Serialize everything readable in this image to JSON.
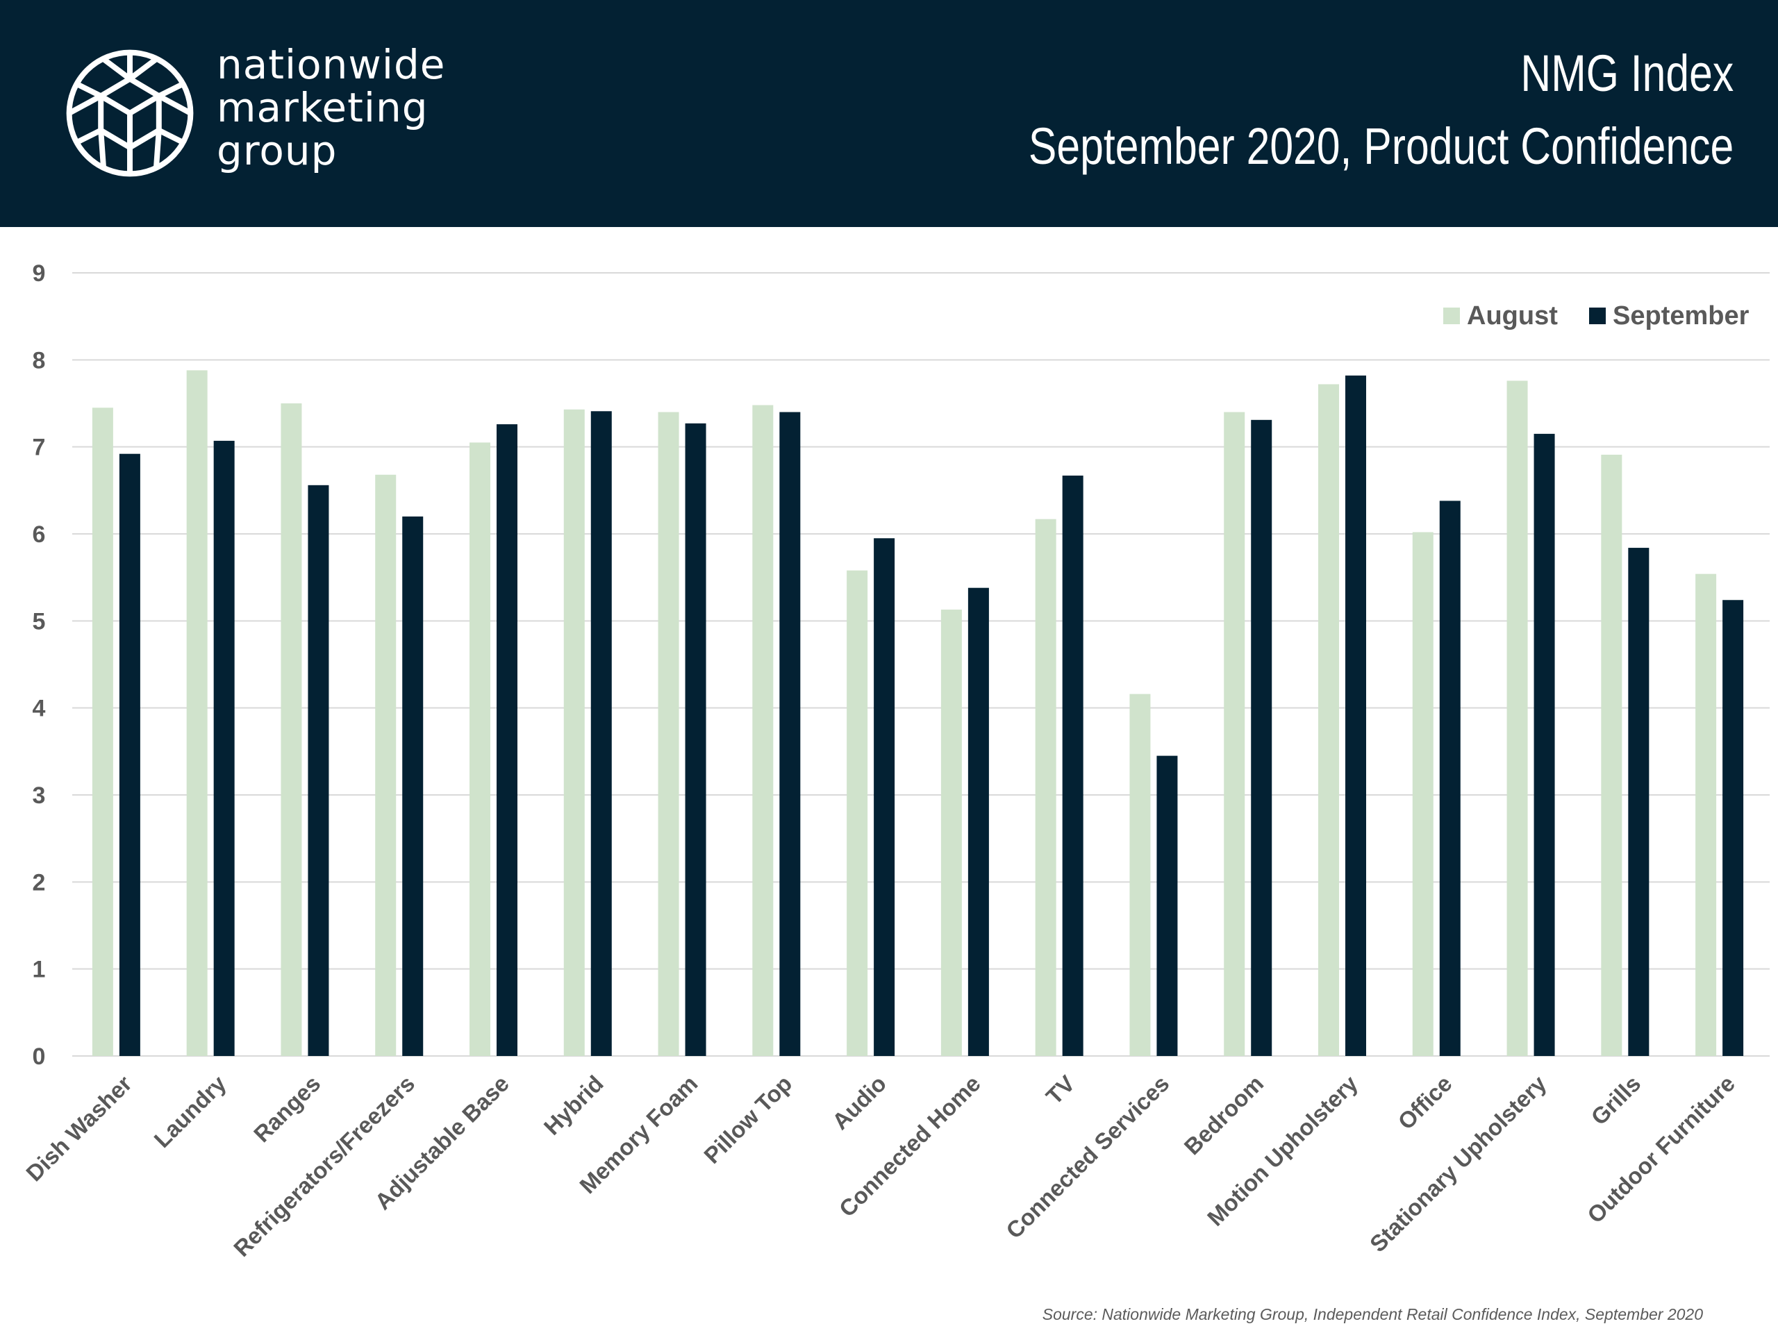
{
  "header": {
    "logo_lines": [
      "nationwide",
      "marketing",
      "group"
    ],
    "title": "NMG Index",
    "subtitle": "September 2020, Product Confidence"
  },
  "colors": {
    "header_bg": "#032133",
    "august": "#d0e3cc",
    "september": "#032133",
    "grid": "#d9d9d9",
    "axis_text": "#595959"
  },
  "chart_data": {
    "type": "bar",
    "categories": [
      "Dish Washer",
      "Laundry",
      "Ranges",
      "Refrigerators/Freezers",
      "Adjustable Base",
      "Hybrid",
      "Memory Foam",
      "Pillow Top",
      "Audio",
      "Connected Home",
      "TV",
      "Connected Services",
      "Bedroom",
      "Motion Upholstery",
      "Office",
      "Stationary Upholstery",
      "Grills",
      "Outdoor Furniture"
    ],
    "series": [
      {
        "name": "August",
        "values": [
          7.45,
          7.88,
          7.5,
          6.68,
          7.05,
          7.43,
          7.4,
          7.48,
          5.58,
          5.13,
          6.17,
          4.16,
          7.4,
          7.72,
          6.02,
          7.76,
          6.91,
          5.54
        ]
      },
      {
        "name": "September",
        "values": [
          6.92,
          7.07,
          6.56,
          6.2,
          7.26,
          7.41,
          7.27,
          7.4,
          5.95,
          5.38,
          6.67,
          3.45,
          7.31,
          7.82,
          6.38,
          7.15,
          5.84,
          5.24
        ]
      }
    ],
    "yticks": [
      "0",
      "1",
      "2",
      "3",
      "4",
      "5",
      "6",
      "7",
      "8",
      "9"
    ],
    "ylim": [
      0,
      9
    ],
    "grid": true,
    "legend_position": "top-right"
  },
  "source": "Source: Nationwide Marketing Group, Independent Retail Confidence Index, September 2020"
}
